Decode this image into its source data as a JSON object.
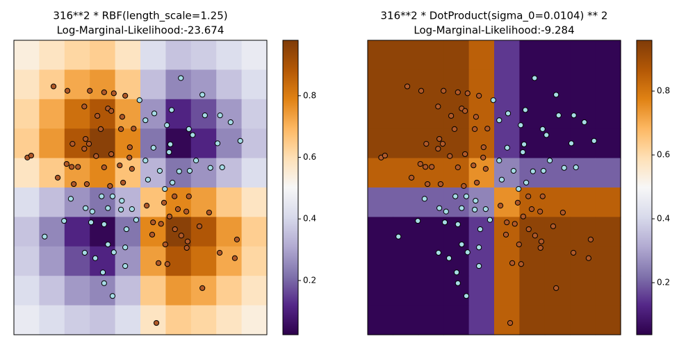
{
  "chart_data": [
    {
      "type": "heatmap-scatter",
      "title": "316**2 * RBF(length_scale=1.25)",
      "subtitle": "Log-Marginal-Likelihood:-23.674",
      "xlim": [
        -3,
        3
      ],
      "ylim": [
        -3,
        3
      ],
      "colormap": [
        "#2d004b",
        "#542788",
        "#8073ac",
        "#b2abd2",
        "#d8daeb",
        "#f7f7f7",
        "#fee0b6",
        "#fdb863",
        "#e08214",
        "#b35806",
        "#7f3b08"
      ],
      "clim": [
        0.024,
        0.98
      ],
      "cticks": [
        0.2,
        0.4,
        0.6,
        0.8
      ],
      "z": [
        [
          0.54,
          0.58,
          0.62,
          0.64,
          0.58,
          0.42,
          0.36,
          0.38,
          0.42,
          0.46
        ],
        [
          0.58,
          0.64,
          0.72,
          0.75,
          0.65,
          0.35,
          0.25,
          0.28,
          0.36,
          0.42
        ],
        [
          0.62,
          0.72,
          0.83,
          0.89,
          0.74,
          0.27,
          0.11,
          0.17,
          0.28,
          0.38
        ],
        [
          0.64,
          0.75,
          0.89,
          0.96,
          0.78,
          0.22,
          0.04,
          0.11,
          0.25,
          0.36
        ],
        [
          0.58,
          0.65,
          0.74,
          0.78,
          0.67,
          0.33,
          0.22,
          0.27,
          0.35,
          0.42
        ],
        [
          0.42,
          0.35,
          0.27,
          0.22,
          0.33,
          0.67,
          0.78,
          0.74,
          0.65,
          0.58
        ],
        [
          0.36,
          0.25,
          0.11,
          0.04,
          0.22,
          0.78,
          0.96,
          0.89,
          0.75,
          0.64
        ],
        [
          0.38,
          0.28,
          0.17,
          0.11,
          0.27,
          0.74,
          0.89,
          0.83,
          0.72,
          0.62
        ],
        [
          0.42,
          0.36,
          0.28,
          0.25,
          0.35,
          0.65,
          0.75,
          0.72,
          0.64,
          0.58
        ],
        [
          0.46,
          0.42,
          0.38,
          0.36,
          0.42,
          0.58,
          0.64,
          0.62,
          0.58,
          0.54
        ]
      ],
      "class_colors": [
        "#a6dce6",
        "#b15928"
      ],
      "x": [
        -2.06,
        -1.73,
        -1.2,
        -0.86,
        -0.63,
        -0.36,
        -1.33,
        -0.77,
        -0.69,
        -1.02,
        -0.43,
        -0.16,
        -0.94,
        -0.46,
        -1.3,
        -1.22,
        -1.61,
        -1.33,
        -0.25,
        -2.68,
        -2.59,
        -1.75,
        -1.63,
        -1.48,
        -0.86,
        -0.69,
        -1.05,
        -0.49,
        -0.26,
        -1.96,
        -1.58,
        -1.27,
        -0.72,
        -0.41,
        -0.2,
        0.81,
        1.15,
        0.56,
        0.15,
        0.89,
        0.3,
        0.69,
        1.09,
        1.63,
        0.49,
        0.82,
        0.97,
        0.28,
        1.4,
        0.59,
        1.12,
        1.88,
        2.29,
        2.24,
        1.1,
        0.43,
        0.64,
        1.47,
        0.38,
        0.96,
        1.47,
        -0.02,
        0.12,
        0.74,
        0.33,
        0.63,
        1.15,
        1.53,
        1.89,
        2.14,
        1.24,
        1.83,
        2.37,
        0.71,
        0.31,
        0.68,
        0.12,
        0.46,
        0.92,
        1.17,
        1.66,
        1.94,
        1.32,
        0.76,
        0.18,
        0.58,
        -1.65,
        -0.92,
        -0.66,
        -0.44,
        -1.3,
        -1.14,
        -0.77,
        -0.46,
        -0.2,
        -0.1,
        -0.86,
        -1.17,
        -1.81,
        -0.33,
        -2.27,
        -1.32,
        -0.77,
        -0.36,
        -0.63,
        -1.07,
        -0.89,
        -0.36,
        -0.66,
        -0.86
      ],
      "y": [
        2.06,
        1.97,
        1.97,
        1.94,
        1.92,
        1.87,
        1.65,
        1.61,
        1.56,
        1.46,
        1.44,
        1.2,
        1.19,
        1.19,
        0.99,
        0.89,
        0.89,
        0.79,
        0.82,
        0.61,
        0.65,
        0.48,
        0.42,
        0.42,
        0.41,
        0.68,
        0.64,
        0.45,
        0.61,
        0.2,
        0.07,
        0.07,
        0.03,
        0.1,
        0.38,
        -0.18,
        -0.18,
        -0.31,
        -0.37,
        -0.44,
        -0.71,
        -0.59,
        -0.49,
        -0.51,
        -0.74,
        -0.85,
        -0.98,
        -0.96,
        -0.79,
        -1.16,
        -1.1,
        -1.33,
        -1.06,
        -1.44,
        -1.23,
        -1.54,
        -1.56,
        -2.05,
        -2.76,
        2.23,
        1.89,
        1.78,
        1.37,
        1.58,
        1.51,
        1.27,
        1.19,
        1.47,
        1.47,
        1.33,
        1.07,
        0.9,
        0.95,
        0.88,
        0.81,
        0.72,
        0.55,
        0.34,
        0.33,
        0.34,
        0.4,
        0.41,
        0.55,
        0.1,
        0.16,
        -0.03,
        -0.23,
        -0.18,
        -0.18,
        -0.27,
        -0.42,
        -0.49,
        -0.42,
        -0.45,
        -0.44,
        -0.66,
        -0.75,
        -0.71,
        -0.68,
        -0.85,
        -1.0,
        -1.33,
        -1.16,
        -1.22,
        -1.32,
        -1.44,
        -1.73,
        -1.6,
        -2.21,
        -1.95
      ],
      "class": [
        1,
        1,
        1,
        1,
        1,
        1,
        1,
        1,
        1,
        1,
        1,
        1,
        1,
        1,
        1,
        1,
        1,
        1,
        1,
        1,
        1,
        1,
        1,
        1,
        1,
        1,
        1,
        1,
        1,
        1,
        1,
        1,
        1,
        1,
        1,
        1,
        1,
        1,
        1,
        1,
        1,
        1,
        1,
        1,
        1,
        1,
        1,
        1,
        1,
        1,
        1,
        1,
        1,
        1,
        1,
        1,
        1,
        1,
        1,
        0,
        0,
        0,
        0,
        0,
        0,
        0,
        0,
        0,
        0,
        0,
        0,
        0,
        0,
        0,
        0,
        0,
        0,
        0,
        0,
        0,
        0,
        0,
        0,
        0,
        0,
        0,
        0,
        0,
        0,
        0,
        0,
        0,
        0,
        0,
        0,
        0,
        0,
        0,
        0,
        0,
        0,
        0,
        0,
        0,
        0,
        0,
        0,
        0,
        0,
        0
      ]
    },
    {
      "type": "heatmap-scatter",
      "title": "316**2 * DotProduct(sigma_0=0.0104) ** 2",
      "subtitle": "Log-Marginal-Likelihood:-9.284",
      "xlim": [
        -3,
        3
      ],
      "ylim": [
        -3,
        3
      ],
      "colormap": [
        "#2d004b",
        "#542788",
        "#8073ac",
        "#b2abd2",
        "#d8daeb",
        "#f7f7f7",
        "#fee0b6",
        "#fdb863",
        "#e08214",
        "#b35806",
        "#7f3b08"
      ],
      "clim": [
        0.037,
        0.959
      ],
      "cticks": [
        0.2,
        0.4,
        0.6,
        0.8
      ],
      "z": [
        [
          0.93,
          0.93,
          0.93,
          0.93,
          0.85,
          0.15,
          0.05,
          0.05,
          0.05,
          0.05
        ],
        [
          0.93,
          0.93,
          0.93,
          0.93,
          0.85,
          0.15,
          0.05,
          0.05,
          0.05,
          0.05
        ],
        [
          0.93,
          0.93,
          0.93,
          0.93,
          0.85,
          0.15,
          0.05,
          0.05,
          0.05,
          0.05
        ],
        [
          0.93,
          0.93,
          0.93,
          0.93,
          0.85,
          0.15,
          0.05,
          0.05,
          0.05,
          0.05
        ],
        [
          0.85,
          0.85,
          0.85,
          0.85,
          0.75,
          0.25,
          0.2,
          0.2,
          0.2,
          0.2
        ],
        [
          0.2,
          0.2,
          0.2,
          0.2,
          0.25,
          0.75,
          0.85,
          0.85,
          0.85,
          0.85
        ],
        [
          0.05,
          0.05,
          0.05,
          0.05,
          0.15,
          0.85,
          0.93,
          0.93,
          0.93,
          0.93
        ],
        [
          0.05,
          0.05,
          0.05,
          0.05,
          0.15,
          0.85,
          0.93,
          0.93,
          0.93,
          0.93
        ],
        [
          0.05,
          0.05,
          0.05,
          0.05,
          0.15,
          0.85,
          0.93,
          0.93,
          0.93,
          0.93
        ],
        [
          0.05,
          0.05,
          0.05,
          0.05,
          0.15,
          0.85,
          0.93,
          0.93,
          0.93,
          0.93
        ]
      ],
      "class_colors": [
        "#a6dce6",
        "#b15928"
      ],
      "x": [
        -2.06,
        -1.73,
        -1.2,
        -0.86,
        -0.63,
        -0.36,
        -1.33,
        -0.77,
        -0.69,
        -1.02,
        -0.43,
        -0.16,
        -0.94,
        -0.46,
        -1.3,
        -1.22,
        -1.61,
        -1.33,
        -0.25,
        -2.68,
        -2.59,
        -1.75,
        -1.63,
        -1.48,
        -0.86,
        -0.69,
        -1.05,
        -0.49,
        -0.26,
        -1.96,
        -1.58,
        -1.27,
        -0.72,
        -0.41,
        -0.2,
        0.81,
        1.15,
        0.56,
        0.15,
        0.89,
        0.3,
        0.69,
        1.09,
        1.63,
        0.49,
        0.82,
        0.97,
        0.28,
        1.4,
        0.59,
        1.12,
        1.88,
        2.29,
        2.24,
        1.1,
        0.43,
        0.64,
        1.47,
        0.38,
        0.96,
        1.47,
        -0.02,
        0.12,
        0.74,
        0.33,
        0.63,
        1.15,
        1.53,
        1.89,
        2.14,
        1.24,
        1.83,
        2.37,
        0.71,
        0.31,
        0.68,
        0.12,
        0.46,
        0.92,
        1.17,
        1.66,
        1.94,
        1.32,
        0.76,
        0.18,
        0.58,
        -1.65,
        -0.92,
        -0.66,
        -0.44,
        -1.3,
        -1.14,
        -0.77,
        -0.46,
        -0.2,
        -0.1,
        -0.86,
        -1.17,
        -1.81,
        -0.33,
        -2.27,
        -1.32,
        -0.77,
        -0.36,
        -0.63,
        -1.07,
        -0.89,
        -0.36,
        -0.66,
        -0.86
      ],
      "y": [
        2.06,
        1.97,
        1.97,
        1.94,
        1.92,
        1.87,
        1.65,
        1.61,
        1.56,
        1.46,
        1.44,
        1.2,
        1.19,
        1.19,
        0.99,
        0.89,
        0.89,
        0.79,
        0.82,
        0.61,
        0.65,
        0.48,
        0.42,
        0.42,
        0.41,
        0.68,
        0.64,
        0.45,
        0.61,
        0.2,
        0.07,
        0.07,
        0.03,
        0.1,
        0.38,
        -0.18,
        -0.18,
        -0.31,
        -0.37,
        -0.44,
        -0.71,
        -0.59,
        -0.49,
        -0.51,
        -0.74,
        -0.85,
        -0.98,
        -0.96,
        -0.79,
        -1.16,
        -1.1,
        -1.33,
        -1.06,
        -1.44,
        -1.23,
        -1.54,
        -1.56,
        -2.05,
        -2.76,
        2.23,
        1.89,
        1.78,
        1.37,
        1.58,
        1.51,
        1.27,
        1.19,
        1.47,
        1.47,
        1.33,
        1.07,
        0.9,
        0.95,
        0.88,
        0.81,
        0.72,
        0.55,
        0.34,
        0.33,
        0.34,
        0.4,
        0.41,
        0.55,
        0.1,
        0.16,
        -0.03,
        -0.23,
        -0.18,
        -0.18,
        -0.27,
        -0.42,
        -0.49,
        -0.42,
        -0.45,
        -0.44,
        -0.66,
        -0.75,
        -0.71,
        -0.68,
        -0.85,
        -1.0,
        -1.33,
        -1.16,
        -1.22,
        -1.32,
        -1.44,
        -1.73,
        -1.6,
        -2.21,
        -1.95
      ],
      "class": [
        1,
        1,
        1,
        1,
        1,
        1,
        1,
        1,
        1,
        1,
        1,
        1,
        1,
        1,
        1,
        1,
        1,
        1,
        1,
        1,
        1,
        1,
        1,
        1,
        1,
        1,
        1,
        1,
        1,
        1,
        1,
        1,
        1,
        1,
        1,
        1,
        1,
        1,
        1,
        1,
        1,
        1,
        1,
        1,
        1,
        1,
        1,
        1,
        1,
        1,
        1,
        1,
        1,
        1,
        1,
        1,
        1,
        1,
        1,
        0,
        0,
        0,
        0,
        0,
        0,
        0,
        0,
        0,
        0,
        0,
        0,
        0,
        0,
        0,
        0,
        0,
        0,
        0,
        0,
        0,
        0,
        0,
        0,
        0,
        0,
        0,
        0,
        0,
        0,
        0,
        0,
        0,
        0,
        0,
        0,
        0,
        0,
        0,
        0,
        0,
        0,
        0,
        0,
        0,
        0,
        0,
        0,
        0,
        0,
        0
      ]
    }
  ]
}
